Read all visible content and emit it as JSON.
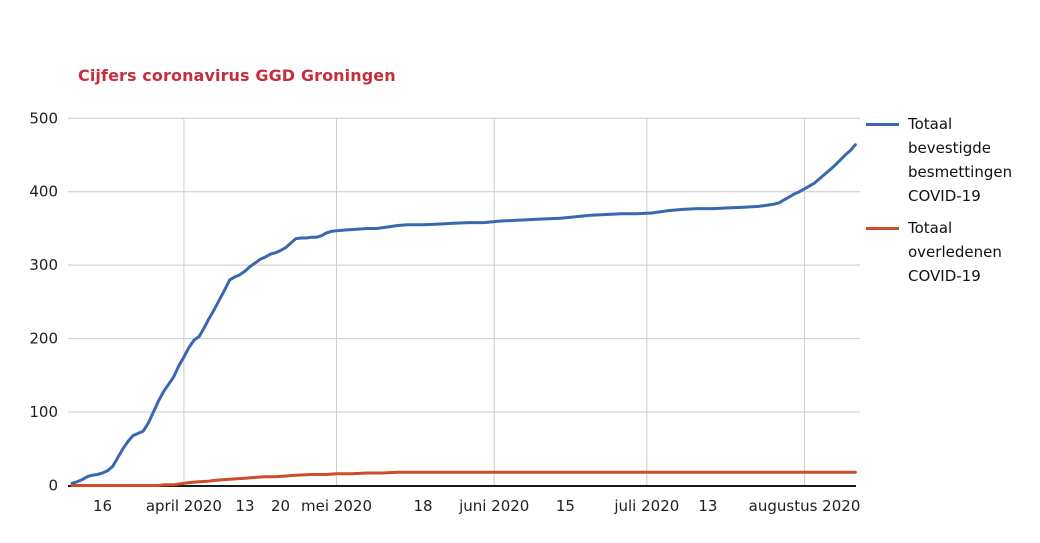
{
  "chart_data": {
    "type": "line",
    "title": "Cijfers coronavirus GGD Groningen",
    "xlabel": "",
    "ylabel": "",
    "ylim": [
      0,
      500
    ],
    "y_ticks": [
      0,
      100,
      200,
      300,
      400,
      500
    ],
    "grid": "on",
    "x_note": "x values are day indices; day 6 = '16' (16 maart 2020) tick, axis runs to ~11 augustus 2020",
    "x_ticks": [
      {
        "day": 6,
        "label": "16"
      },
      {
        "day": 22,
        "label": "april 2020"
      },
      {
        "day": 34,
        "label": "13"
      },
      {
        "day": 41,
        "label": "20"
      },
      {
        "day": 52,
        "label": "mei 2020"
      },
      {
        "day": 69,
        "label": "18"
      },
      {
        "day": 83,
        "label": "juni 2020"
      },
      {
        "day": 97,
        "label": "15"
      },
      {
        "day": 113,
        "label": "juli 2020"
      },
      {
        "day": 125,
        "label": "13"
      },
      {
        "day": 144,
        "label": "augustus 2020"
      }
    ],
    "month_gridline_days": [
      22,
      52,
      83,
      113,
      144
    ],
    "legend": {
      "position": "right"
    },
    "colors": {
      "title": "#C42F3B",
      "grid": "#CCCCCC",
      "axis": "#1A1A1A",
      "tick_text": "#1F1F1F",
      "background": "#FFFFFF"
    },
    "series": [
      {
        "name": "Totaal bevestigde besmettingen COVID-19",
        "color": "#3A67B2",
        "points": [
          [
            0,
            3
          ],
          [
            1,
            5
          ],
          [
            2,
            8
          ],
          [
            3,
            12
          ],
          [
            4,
            14
          ],
          [
            5,
            15
          ],
          [
            6,
            17
          ],
          [
            7,
            20
          ],
          [
            8,
            26
          ],
          [
            9,
            38
          ],
          [
            10,
            50
          ],
          [
            11,
            60
          ],
          [
            12,
            68
          ],
          [
            13,
            71
          ],
          [
            14,
            74
          ],
          [
            15,
            85
          ],
          [
            16,
            100
          ],
          [
            17,
            115
          ],
          [
            18,
            128
          ],
          [
            19,
            138
          ],
          [
            20,
            148
          ],
          [
            21,
            163
          ],
          [
            22,
            175
          ],
          [
            23,
            188
          ],
          [
            24,
            198
          ],
          [
            25,
            203
          ],
          [
            26,
            215
          ],
          [
            27,
            228
          ],
          [
            28,
            240
          ],
          [
            29,
            253
          ],
          [
            30,
            266
          ],
          [
            31,
            280
          ],
          [
            32,
            284
          ],
          [
            33,
            287
          ],
          [
            34,
            292
          ],
          [
            35,
            298
          ],
          [
            36,
            303
          ],
          [
            37,
            308
          ],
          [
            38,
            311
          ],
          [
            39,
            315
          ],
          [
            40,
            317
          ],
          [
            41,
            320
          ],
          [
            42,
            324
          ],
          [
            43,
            330
          ],
          [
            44,
            336
          ],
          [
            45,
            337
          ],
          [
            46,
            337
          ],
          [
            47,
            338
          ],
          [
            48,
            338
          ],
          [
            49,
            340
          ],
          [
            50,
            344
          ],
          [
            51,
            346
          ],
          [
            52,
            347
          ],
          [
            54,
            348
          ],
          [
            56,
            349
          ],
          [
            58,
            350
          ],
          [
            60,
            350
          ],
          [
            62,
            352
          ],
          [
            64,
            354
          ],
          [
            66,
            355
          ],
          [
            69,
            355
          ],
          [
            72,
            356
          ],
          [
            75,
            357
          ],
          [
            78,
            358
          ],
          [
            81,
            358
          ],
          [
            84,
            360
          ],
          [
            87,
            361
          ],
          [
            90,
            362
          ],
          [
            93,
            363
          ],
          [
            96,
            364
          ],
          [
            99,
            366
          ],
          [
            102,
            368
          ],
          [
            105,
            369
          ],
          [
            108,
            370
          ],
          [
            111,
            370
          ],
          [
            114,
            371
          ],
          [
            117,
            374
          ],
          [
            120,
            376
          ],
          [
            123,
            377
          ],
          [
            126,
            377
          ],
          [
            129,
            378
          ],
          [
            132,
            379
          ],
          [
            135,
            380
          ],
          [
            138,
            383
          ],
          [
            139,
            385
          ],
          [
            140,
            389
          ],
          [
            141,
            393
          ],
          [
            142,
            397
          ],
          [
            143,
            400
          ],
          [
            144,
            404
          ],
          [
            145,
            408
          ],
          [
            146,
            412
          ],
          [
            147,
            418
          ],
          [
            148,
            424
          ],
          [
            149,
            430
          ],
          [
            150,
            436
          ],
          [
            151,
            443
          ],
          [
            152,
            450
          ],
          [
            153,
            456
          ],
          [
            154,
            464
          ]
        ]
      },
      {
        "name": "Totaal overledenen COVID-19",
        "color": "#CE4B2C",
        "points": [
          [
            0,
            0
          ],
          [
            17,
            0
          ],
          [
            18,
            1
          ],
          [
            20,
            1
          ],
          [
            21,
            2
          ],
          [
            22,
            3
          ],
          [
            23,
            4
          ],
          [
            25,
            5
          ],
          [
            27,
            6
          ],
          [
            28,
            7
          ],
          [
            30,
            8
          ],
          [
            32,
            9
          ],
          [
            34,
            10
          ],
          [
            36,
            11
          ],
          [
            38,
            12
          ],
          [
            40,
            12
          ],
          [
            42,
            13
          ],
          [
            44,
            14
          ],
          [
            47,
            15
          ],
          [
            50,
            15
          ],
          [
            52,
            16
          ],
          [
            55,
            16
          ],
          [
            58,
            17
          ],
          [
            61,
            17
          ],
          [
            64,
            18
          ],
          [
            154,
            18
          ]
        ]
      }
    ]
  }
}
